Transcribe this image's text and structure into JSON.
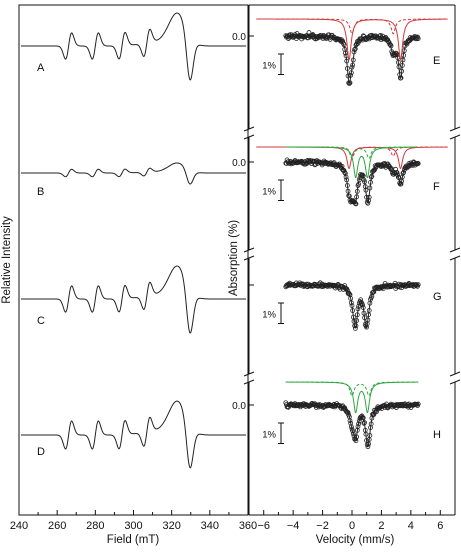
{
  "figure": {
    "left_axis_title": "Relative Intensity",
    "right_axis_title": "Absorption (%)"
  },
  "colors": {
    "trace": "#222222",
    "fit_red": "#d43a3a",
    "fit_green": "#2fa83f",
    "axis": "#111111"
  },
  "chart_data": [
    {
      "type": "line",
      "name": "epr",
      "xlabel": "Field (mT)",
      "ylabel": "Relative Intensity",
      "xlim": [
        240,
        360
      ],
      "xticks": [
        240,
        260,
        280,
        300,
        320,
        340,
        360
      ],
      "xtick_labels": [
        "240",
        "260",
        "280",
        "300",
        "320",
        "340",
        "360"
      ],
      "panels": [
        {
          "label": "A",
          "peaks_mT": [
            266,
            280,
            294,
            307
          ],
          "peak_amp": 0.3,
          "main_pos": 0.7,
          "main_neg": 1.0
        },
        {
          "label": "B",
          "peaks_mT": [
            266,
            280,
            294,
            307
          ],
          "peak_amp": 0.08,
          "main_pos": 0.2,
          "main_neg": 0.3
        },
        {
          "label": "C",
          "peaks_mT": [
            266,
            280,
            294,
            307
          ],
          "peak_amp": 0.3,
          "main_pos": 0.7,
          "main_neg": 1.0
        },
        {
          "label": "D",
          "peaks_mT": [
            266,
            280,
            294,
            307
          ],
          "peak_amp": 0.32,
          "main_pos": 0.72,
          "main_neg": 0.98
        }
      ]
    },
    {
      "type": "scatter",
      "name": "mossbauer",
      "xlabel": "Velocity (mm/s)",
      "ylabel": "Absorption (%)",
      "xlim": [
        -7,
        7
      ],
      "xticks": [
        -6,
        -4,
        -2,
        0,
        2,
        4,
        6
      ],
      "xtick_labels": [
        "−6",
        "−4",
        "−2",
        "0",
        "2",
        "4",
        "6"
      ],
      "zero_tick_label": "0.0",
      "scale_bar_label": "1%",
      "panels": [
        {
          "label": "E",
          "components": [
            {
              "name": "",
              "color": "red",
              "style": "solid",
              "lines": [
                -0.2,
                3.3
              ],
              "depth": 3.6
            },
            {
              "name": "",
              "color": "red",
              "style": "dashed",
              "lines": [
                0.0,
                2.8
              ],
              "depth": 1.3
            }
          ]
        },
        {
          "label": "F",
          "components": [
            {
              "name": "",
              "color": "red",
              "style": "solid",
              "lines": [
                -0.2,
                3.3
              ],
              "depth": 1.9
            },
            {
              "name": "",
              "color": "red",
              "style": "dashed",
              "lines": [
                0.0,
                2.8
              ],
              "depth": 0.8
            },
            {
              "name": "",
              "color": "green",
              "style": "solid",
              "lines": [
                0.25,
                1.05
              ],
              "depth": 2.6
            },
            {
              "name": "",
              "color": "green",
              "style": "dashed",
              "lines": [
                0.0,
                1.15
              ],
              "depth": 1.0
            }
          ]
        },
        {
          "label": "G",
          "components": [
            {
              "name": "",
              "color": "black",
              "style": "none",
              "lines": [
                0.25,
                0.95
              ],
              "depth": 3.0
            },
            {
              "name": "",
              "color": "black",
              "style": "none",
              "lines": [
                0.1,
                1.1
              ],
              "depth": 1.0
            }
          ]
        },
        {
          "label": "H",
          "components": [
            {
              "name": "",
              "color": "green",
              "style": "solid",
              "lines": [
                0.25,
                1.05
              ],
              "depth": 2.6
            },
            {
              "name": "",
              "color": "green",
              "style": "dashed",
              "lines": [
                0.0,
                1.15
              ],
              "depth": 1.2
            }
          ]
        }
      ]
    }
  ]
}
